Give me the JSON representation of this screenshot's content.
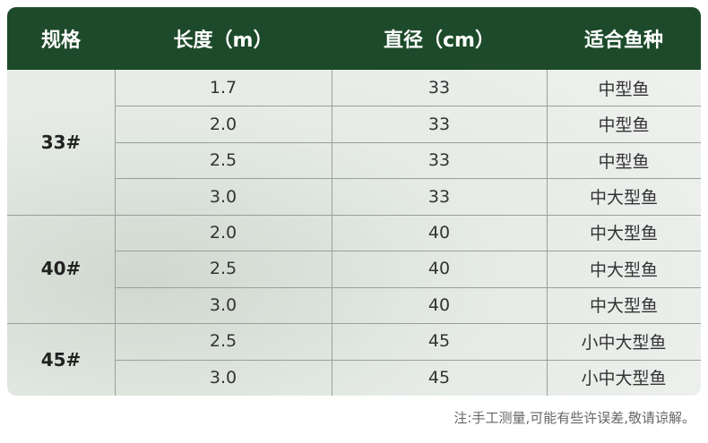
{
  "table": {
    "headers": [
      "规格",
      "长度（m）",
      "直径（cm）",
      "适合鱼种"
    ],
    "groups": [
      {
        "spec": "33#",
        "rows": [
          [
            "1.7",
            "33",
            "中型鱼"
          ],
          [
            "2.0",
            "33",
            "中型鱼"
          ],
          [
            "2.5",
            "33",
            "中型鱼"
          ],
          [
            "3.0",
            "33",
            "中大型鱼"
          ]
        ]
      },
      {
        "spec": "40#",
        "rows": [
          [
            "2.0",
            "40",
            "中大型鱼"
          ],
          [
            "2.5",
            "40",
            "中大型鱼"
          ],
          [
            "3.0",
            "40",
            "中大型鱼"
          ]
        ]
      },
      {
        "spec": "45#",
        "rows": [
          [
            "2.5",
            "45",
            "小中大型鱼"
          ],
          [
            "3.0",
            "45",
            "小中大型鱼"
          ]
        ]
      }
    ]
  },
  "note": "注:手工测量,可能有些许误差,敬请谅解。"
}
